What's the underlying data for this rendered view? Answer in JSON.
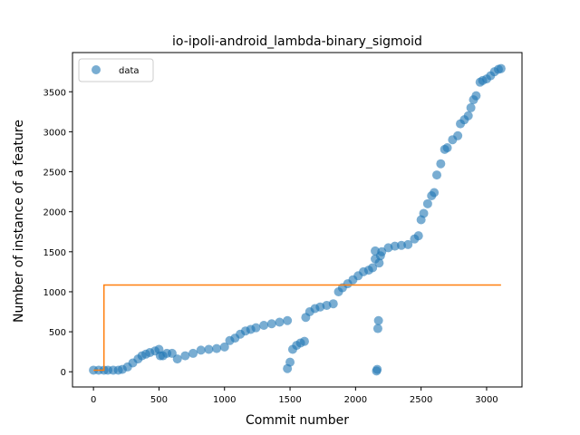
{
  "chart_data": {
    "type": "scatter",
    "title": "io-ipoli-android_lambda-binary_sigmoid",
    "xlabel": "Commit number",
    "ylabel": "Number of instance of a feature",
    "xlim": [
      -160,
      3270
    ],
    "ylim": [
      -190,
      3990
    ],
    "xticks": [
      0,
      500,
      1000,
      1500,
      2000,
      2500,
      3000
    ],
    "yticks": [
      0,
      500,
      1000,
      1500,
      2000,
      2500,
      3000,
      3500
    ],
    "grid": false,
    "legend": {
      "placement": "top-left",
      "entries": [
        "data"
      ]
    },
    "colors": {
      "scatter": "#1f77b4",
      "fit": "#ff7f0e"
    },
    "series": [
      {
        "name": "data",
        "kind": "scatter",
        "x": [
          0,
          40,
          80,
          110,
          150,
          190,
          220,
          260,
          300,
          340,
          370,
          400,
          430,
          470,
          500,
          510,
          530,
          560,
          600,
          640,
          700,
          760,
          820,
          880,
          940,
          1000,
          1040,
          1080,
          1120,
          1160,
          1200,
          1240,
          1300,
          1360,
          1420,
          1480,
          1480,
          1500,
          1520,
          1550,
          1580,
          1610,
          1620,
          1650,
          1690,
          1730,
          1780,
          1830,
          1870,
          1900,
          1940,
          1980,
          2020,
          2060,
          2100,
          2130,
          2150,
          2150,
          2160,
          2165,
          2170,
          2175,
          2180,
          2190,
          2200,
          2250,
          2300,
          2350,
          2400,
          2450,
          2480,
          2500,
          2520,
          2550,
          2580,
          2600,
          2620,
          2650,
          2680,
          2700,
          2740,
          2780,
          2800,
          2830,
          2860,
          2880,
          2900,
          2920,
          2950,
          2970,
          3000,
          3030,
          3060,
          3090,
          3110
        ],
        "y": [
          20,
          20,
          20,
          20,
          20,
          20,
          30,
          60,
          110,
          160,
          200,
          220,
          240,
          260,
          280,
          200,
          200,
          230,
          230,
          160,
          200,
          230,
          270,
          280,
          290,
          310,
          390,
          420,
          470,
          510,
          530,
          550,
          580,
          600,
          620,
          640,
          40,
          120,
          280,
          330,
          360,
          380,
          680,
          750,
          790,
          810,
          830,
          850,
          1000,
          1050,
          1100,
          1150,
          1200,
          1250,
          1270,
          1300,
          1410,
          1510,
          10,
          30,
          540,
          640,
          1360,
          1450,
          1500,
          1550,
          1570,
          1580,
          1590,
          1660,
          1700,
          1900,
          1980,
          2100,
          2200,
          2240,
          2460,
          2600,
          2780,
          2800,
          2900,
          2950,
          3100,
          3150,
          3200,
          3300,
          3400,
          3450,
          3620,
          3640,
          3660,
          3700,
          3750,
          3780,
          3790
        ]
      },
      {
        "name": "",
        "kind": "line",
        "x": [
          0,
          80,
          80,
          3110
        ],
        "y": [
          20,
          20,
          1085,
          1085
        ]
      }
    ]
  }
}
